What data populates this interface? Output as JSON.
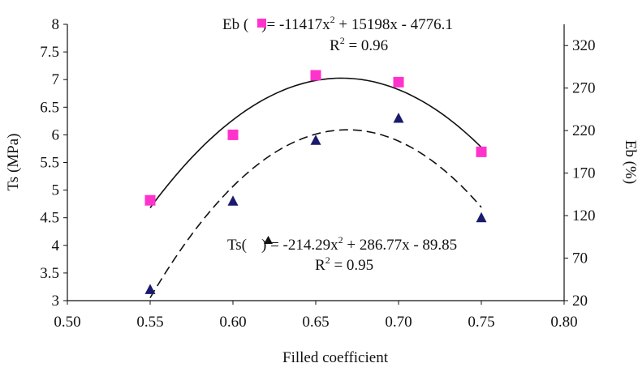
{
  "chart_data": {
    "type": "scatter",
    "xlabel": "Filled coefficient",
    "ylabel_left": "Ts (MPa)",
    "ylabel_right": "Eb (%)",
    "xlim": [
      0.5,
      0.8
    ],
    "ylim_left": [
      3,
      8
    ],
    "ylim_right": [
      20,
      345
    ],
    "x_ticks": [
      "0.50",
      "0.55",
      "0.60",
      "0.65",
      "0.70",
      "0.75",
      "0.80"
    ],
    "y_left_ticks": [
      "3",
      "3.5",
      "4",
      "4.5",
      "5",
      "5.5",
      "6",
      "6.5",
      "7",
      "7.5",
      "8"
    ],
    "y_right_ticks": [
      "20",
      "70",
      "120",
      "170",
      "220",
      "270",
      "320"
    ],
    "grid": false,
    "series": [
      {
        "marker": "square",
        "color": "#ff33cc",
        "axis": "right",
        "x": [
          0.55,
          0.6,
          0.65,
          0.7,
          0.75
        ],
        "values": [
          138,
          215,
          285,
          277,
          195
        ],
        "trendline": {
          "style": "solid",
          "coef": [
            -11417,
            15198,
            -4776.1
          ]
        }
      },
      {
        "marker": "triangle",
        "color": "#1a1a6e",
        "axis": "left",
        "x": [
          0.55,
          0.6,
          0.65,
          0.7,
          0.75
        ],
        "values": [
          3.2,
          4.8,
          5.9,
          6.3,
          4.5
        ],
        "trendline": {
          "style": "dashed",
          "coef": [
            -214.29,
            286.77,
            -89.85
          ]
        }
      }
    ],
    "annotations": {
      "eb_eq_prefix": "Eb (",
      "eb_eq_mid": ")= -11417x",
      "eb_eq_exp": "2",
      "eb_eq_suffix": " + 15198x - 4776.1",
      "eb_r2_prefix": "R",
      "eb_r2_exp": "2",
      "eb_r2_suffix": " = 0.96",
      "ts_eq_prefix": "Ts(",
      "ts_eq_mid": ") = -214.29x",
      "ts_eq_exp": "2",
      "ts_eq_suffix": "  + 286.77x - 89.85",
      "ts_r2_prefix": "R",
      "ts_r2_exp": "2",
      "ts_r2_suffix": " = 0.95"
    }
  }
}
